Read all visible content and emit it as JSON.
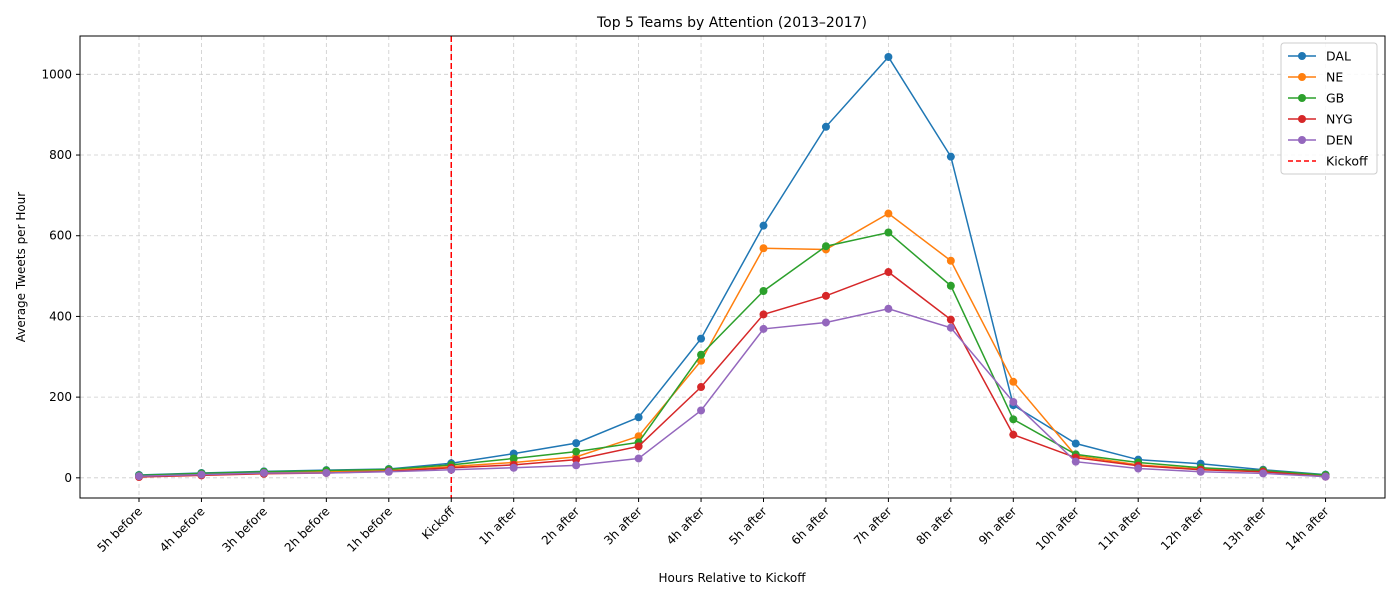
{
  "chart_data": {
    "type": "line",
    "title": "Top 5 Teams by Attention (2013–2017)",
    "xlabel": "Hours Relative to Kickoff",
    "ylabel": "Average Tweets per Hour",
    "categories": [
      "5h before",
      "4h before",
      "3h before",
      "2h before",
      "1h before",
      "Kickoff",
      "1h after",
      "2h after",
      "3h after",
      "4h after",
      "5h after",
      "6h after",
      "7h after",
      "8h after",
      "9h after",
      "10h after",
      "11h after",
      "12h after",
      "13h after",
      "14h after"
    ],
    "ylim": [
      -50,
      1095
    ],
    "yticks": [
      0,
      200,
      400,
      600,
      800,
      1000
    ],
    "grid": true,
    "legend_position": "top-right",
    "series": [
      {
        "name": "DAL",
        "color": "#1f77b4",
        "values": [
          7,
          12,
          16,
          19,
          22,
          36,
          60,
          86,
          150,
          345,
          625,
          870,
          1043,
          796,
          180,
          85,
          45,
          35,
          20,
          8
        ]
      },
      {
        "name": "NE",
        "color": "#ff7f0e",
        "values": [
          3,
          8,
          12,
          15,
          18,
          28,
          38,
          52,
          103,
          290,
          569,
          566,
          655,
          538,
          238,
          55,
          32,
          22,
          18,
          5
        ]
      },
      {
        "name": "GB",
        "color": "#2ca02c",
        "values": [
          6,
          11,
          15,
          18,
          21,
          32,
          48,
          65,
          88,
          305,
          463,
          574,
          608,
          476,
          145,
          58,
          38,
          25,
          18,
          7
        ]
      },
      {
        "name": "NYG",
        "color": "#d62728",
        "values": [
          2,
          6,
          10,
          12,
          16,
          25,
          32,
          45,
          78,
          225,
          405,
          451,
          510,
          392,
          107,
          50,
          30,
          20,
          15,
          3
        ]
      },
      {
        "name": "DEN",
        "color": "#9467bd",
        "values": [
          4,
          8,
          12,
          12,
          15,
          20,
          25,
          31,
          48,
          167,
          369,
          385,
          419,
          372,
          188,
          40,
          23,
          15,
          11,
          3
        ]
      }
    ],
    "kickoff_line": {
      "name": "Kickoff",
      "color": "#ff0000",
      "category": "Kickoff"
    }
  }
}
